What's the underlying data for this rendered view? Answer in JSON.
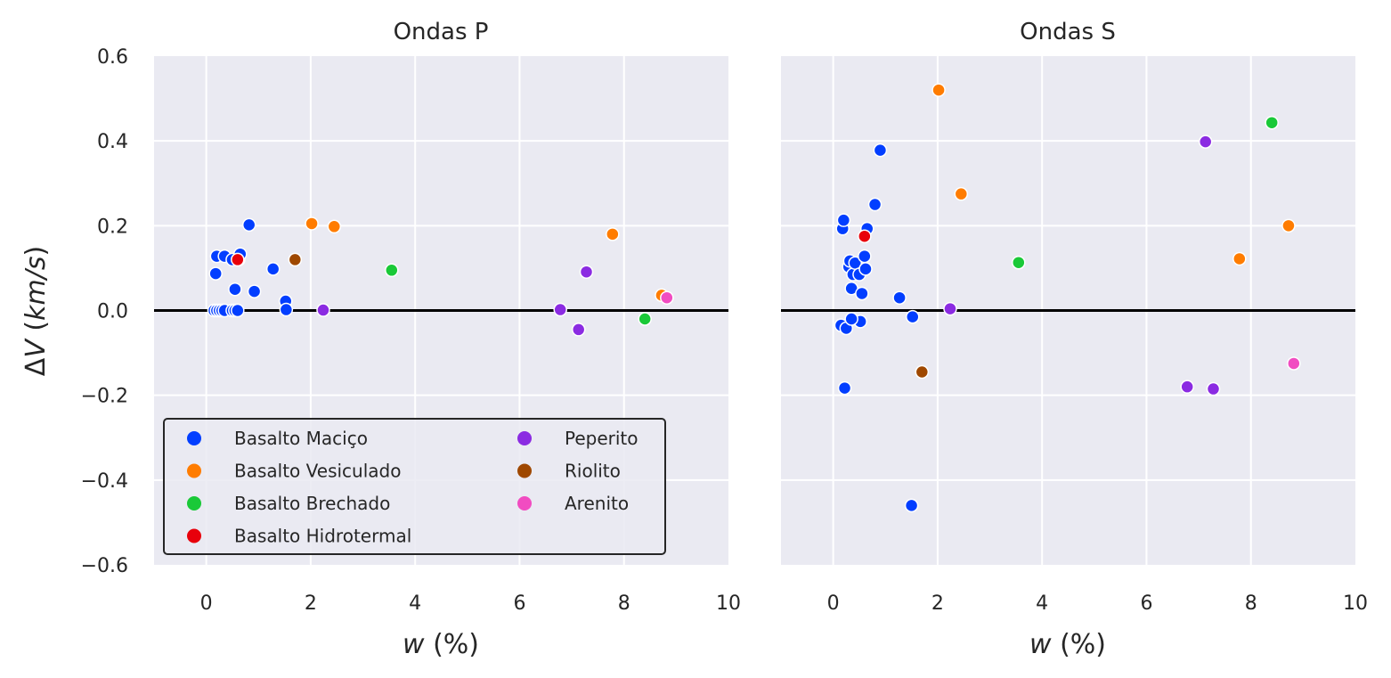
{
  "colors": {
    "Basalto Maciço": "#023eff",
    "Basalto Vesiculado": "#ff7c00",
    "Basalto Brechado": "#1ac938",
    "Basalto Hidrotermal": "#e8000b",
    "Peperito": "#8b2be2",
    "Riolito": "#9f4800",
    "Arenito": "#f14cc1"
  },
  "legend": {
    "col1": [
      "Basalto Maciço",
      "Basalto Vesiculado",
      "Basalto Brechado",
      "Basalto Hidrotermal"
    ],
    "col2": [
      "Peperito",
      "Riolito",
      "Arenito"
    ]
  },
  "chart_data": [
    {
      "type": "scatter",
      "title": "Ondas P",
      "xlabel": "w (%)",
      "ylabel": "ΔV (km/s)",
      "xlim": [
        -1,
        10
      ],
      "ylim": [
        -0.6,
        0.6
      ],
      "xticks": [
        "0",
        "2",
        "4",
        "6",
        "8",
        "10"
      ],
      "yticks": [
        "0.6",
        "0.4",
        "0.2",
        "0.0",
        "−0.2",
        "−0.4",
        "−0.6"
      ],
      "hline": 0,
      "grid": true,
      "legend_position": "lower-left",
      "series": [
        {
          "name": "Basalto Maciço",
          "points": [
            [
              0.15,
              0.0
            ],
            [
              0.2,
              0.0
            ],
            [
              0.25,
              0.0
            ],
            [
              0.3,
              0.0
            ],
            [
              0.35,
              0.0
            ],
            [
              0.5,
              0.0
            ],
            [
              0.55,
              0.0
            ],
            [
              0.6,
              0.0
            ],
            [
              0.18,
              0.087
            ],
            [
              0.2,
              0.128
            ],
            [
              0.35,
              0.128
            ],
            [
              0.5,
              0.12
            ],
            [
              0.62,
              0.12
            ],
            [
              0.65,
              0.133
            ],
            [
              0.55,
              0.05
            ],
            [
              0.82,
              0.202
            ],
            [
              0.92,
              0.045
            ],
            [
              1.28,
              0.098
            ],
            [
              1.52,
              0.022
            ],
            [
              1.53,
              0.002
            ]
          ]
        },
        {
          "name": "Basalto Vesiculado",
          "points": [
            [
              2.02,
              0.205
            ],
            [
              2.45,
              0.198
            ],
            [
              7.78,
              0.18
            ],
            [
              8.72,
              0.036
            ]
          ]
        },
        {
          "name": "Basalto Brechado",
          "points": [
            [
              3.55,
              0.095
            ],
            [
              8.4,
              -0.02
            ]
          ]
        },
        {
          "name": "Basalto Hidrotermal",
          "points": [
            [
              0.6,
              0.12
            ]
          ]
        },
        {
          "name": "Peperito",
          "points": [
            [
              2.24,
              0.001
            ],
            [
              6.78,
              0.002
            ],
            [
              7.13,
              -0.045
            ],
            [
              7.28,
              0.091
            ]
          ]
        },
        {
          "name": "Riolito",
          "points": [
            [
              1.7,
              0.12
            ]
          ]
        },
        {
          "name": "Arenito",
          "points": [
            [
              8.82,
              0.03
            ]
          ]
        }
      ]
    },
    {
      "type": "scatter",
      "title": "Ondas S",
      "xlabel": "w (%)",
      "ylabel": "",
      "xlim": [
        -1,
        10
      ],
      "ylim": [
        -0.6,
        0.6
      ],
      "xticks": [
        "0",
        "2",
        "4",
        "6",
        "8",
        "10"
      ],
      "hline": 0,
      "grid": true,
      "series": [
        {
          "name": "Basalto Maciço",
          "points": [
            [
              0.15,
              -0.035
            ],
            [
              0.18,
              0.193
            ],
            [
              0.2,
              0.213
            ],
            [
              0.25,
              -0.042
            ],
            [
              0.22,
              -0.183
            ],
            [
              0.3,
              0.103
            ],
            [
              0.32,
              0.117
            ],
            [
              0.35,
              0.052
            ],
            [
              0.38,
              0.085
            ],
            [
              0.42,
              0.112
            ],
            [
              0.5,
              0.085
            ],
            [
              0.52,
              -0.026
            ],
            [
              0.55,
              0.04
            ],
            [
              0.6,
              0.128
            ],
            [
              0.62,
              0.098
            ],
            [
              0.65,
              0.193
            ],
            [
              0.8,
              0.25
            ],
            [
              0.9,
              0.378
            ],
            [
              1.27,
              0.03
            ],
            [
              1.52,
              -0.015
            ],
            [
              1.5,
              -0.46
            ],
            [
              0.35,
              -0.02
            ]
          ]
        },
        {
          "name": "Basalto Vesiculado",
          "points": [
            [
              2.02,
              0.52
            ],
            [
              2.45,
              0.275
            ],
            [
              7.78,
              0.122
            ],
            [
              8.72,
              0.2
            ]
          ]
        },
        {
          "name": "Basalto Brechado",
          "points": [
            [
              3.55,
              0.113
            ],
            [
              8.4,
              0.443
            ]
          ]
        },
        {
          "name": "Basalto Hidrotermal",
          "points": [
            [
              0.6,
              0.175
            ]
          ]
        },
        {
          "name": "Peperito",
          "points": [
            [
              2.24,
              0.004
            ],
            [
              6.78,
              -0.18
            ],
            [
              7.13,
              0.398
            ],
            [
              7.28,
              -0.185
            ]
          ]
        },
        {
          "name": "Riolito",
          "points": [
            [
              1.7,
              -0.145
            ]
          ]
        },
        {
          "name": "Arenito",
          "points": [
            [
              8.82,
              -0.125
            ]
          ]
        }
      ]
    }
  ]
}
